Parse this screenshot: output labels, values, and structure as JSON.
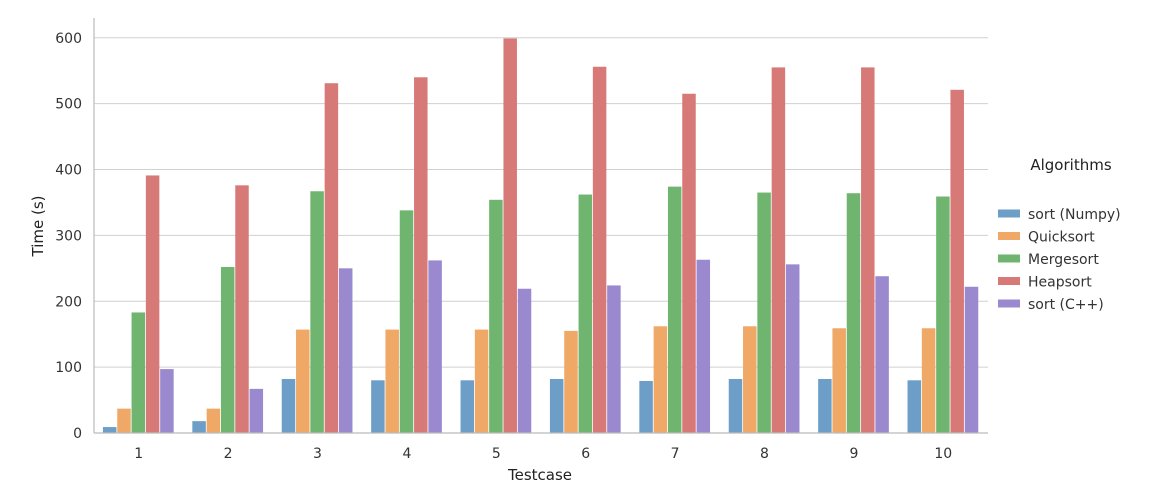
{
  "chart_data": {
    "type": "bar",
    "title": "",
    "xlabel": "Testcase",
    "ylabel": "Time (s)",
    "ylim": [
      0,
      630
    ],
    "yticks": [
      0,
      100,
      200,
      300,
      400,
      500,
      600
    ],
    "grid": true,
    "legend_position": "right",
    "legend_title": "Algorithms",
    "categories": [
      "1",
      "2",
      "3",
      "4",
      "5",
      "6",
      "7",
      "8",
      "9",
      "10"
    ],
    "series": [
      {
        "name": "sort (Numpy)",
        "color": "#6d9ec7",
        "values": [
          9,
          18,
          82,
          80,
          80,
          82,
          79,
          82,
          82,
          80
        ]
      },
      {
        "name": "Quicksort",
        "color": "#f0a866",
        "values": [
          37,
          37,
          157,
          157,
          157,
          155,
          162,
          162,
          159,
          159
        ]
      },
      {
        "name": "Mergesort",
        "color": "#6fb56f",
        "values": [
          183,
          252,
          367,
          338,
          354,
          362,
          374,
          365,
          364,
          359
        ]
      },
      {
        "name": "Heapsort",
        "color": "#d77a77",
        "values": [
          391,
          376,
          531,
          540,
          599,
          556,
          515,
          555,
          555,
          521
        ]
      },
      {
        "name": "sort (C++)",
        "color": "#9a89cf",
        "values": [
          97,
          67,
          250,
          262,
          219,
          224,
          263,
          256,
          238,
          222
        ]
      }
    ]
  }
}
